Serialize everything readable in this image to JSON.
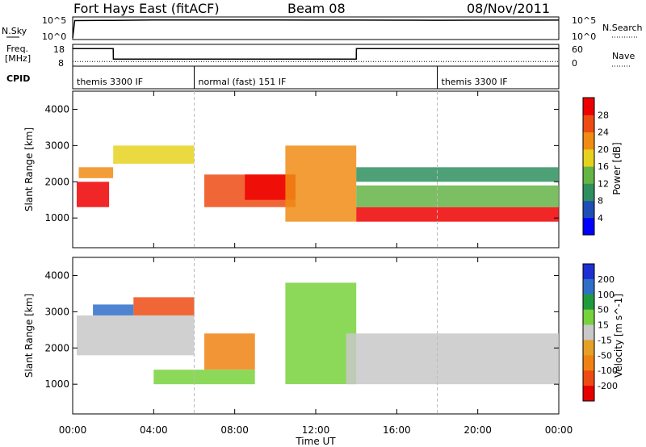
{
  "header": {
    "title": "Fort Hays East (fitACF)",
    "beam": "Beam 08",
    "date": "08/Nov/2011"
  },
  "noise_panel": {
    "left_label": "N.Sky",
    "right_label": "N.Search",
    "left_ticks": [
      "10^5",
      "10^0"
    ],
    "right_ticks": [
      "10^5",
      "10^0"
    ]
  },
  "freq_panel": {
    "left_label_1": "Freq.",
    "left_label_2": "[MHz]",
    "right_label": "Nave",
    "left_ticks": [
      "18",
      "8"
    ],
    "right_ticks": [
      "60",
      "0"
    ]
  },
  "cpid_panel": {
    "label": "CPID",
    "segments": [
      {
        "text": "themis 3300 IF",
        "start_hour": 0
      },
      {
        "text": "normal (fast) 151 IF",
        "start_hour": 6
      },
      {
        "text": "themis 3300 IF",
        "start_hour": 18
      }
    ]
  },
  "x_axis": {
    "label": "Time UT",
    "ticks": [
      "00:00",
      "04:00",
      "08:00",
      "12:00",
      "16:00",
      "20:00",
      "00:00"
    ]
  },
  "chart_data": [
    {
      "type": "line",
      "panel": "noise",
      "x": [
        0,
        0.1,
        2,
        4,
        6,
        8,
        10,
        12,
        14,
        16,
        18,
        20,
        22,
        24
      ],
      "series": [
        {
          "name": "N.Sky",
          "values": [
            1,
            30000,
            35000,
            42000,
            45000,
            44000,
            43000,
            41000,
            40000,
            38000,
            37000,
            38000,
            39000,
            40000
          ]
        }
      ]
    },
    {
      "type": "line",
      "panel": "frequency",
      "x": [
        0,
        2,
        2.01,
        14,
        14.01,
        24
      ],
      "series": [
        {
          "name": "Freq.",
          "values": [
            16.6,
            16.6,
            10.9,
            10.9,
            16.6,
            16.6
          ]
        },
        {
          "name": "Nave",
          "values": [
            10,
            10,
            10,
            10,
            10,
            10
          ]
        }
      ]
    },
    {
      "type": "heatmap",
      "panel": "power",
      "xlabel": "",
      "ylabel": "Slant Range [km]",
      "xlim": [
        0,
        24
      ],
      "ylim": [
        180,
        4500
      ],
      "yticks": [
        1000,
        2000,
        3000,
        4000
      ],
      "colorbar": {
        "label": "Power [dB]",
        "ticks": [
          "4",
          "8",
          "12",
          "16",
          "20",
          "24",
          "28"
        ],
        "colors": [
          "#0000ff",
          "#1f4fb4",
          "#2f8f5f",
          "#64b446",
          "#e6d21e",
          "#f08c14",
          "#ee4b14",
          "#ee0000"
        ]
      },
      "bands": [
        {
          "start": 0.2,
          "end": 1.8,
          "range_low": 1300,
          "range_high": 2000,
          "level": 28
        },
        {
          "start": 0.3,
          "end": 2.0,
          "range_low": 2100,
          "range_high": 2400,
          "level": 20
        },
        {
          "start": 2.0,
          "end": 6.0,
          "range_low": 2500,
          "range_high": 3000,
          "level": 18
        },
        {
          "start": 6.5,
          "end": 11.0,
          "range_low": 1300,
          "range_high": 2200,
          "level": 24
        },
        {
          "start": 8.5,
          "end": 11.0,
          "range_low": 1500,
          "range_high": 2200,
          "level": 28
        },
        {
          "start": 10.5,
          "end": 14.0,
          "range_low": 900,
          "range_high": 3000,
          "level": 20
        },
        {
          "start": 14.0,
          "end": 24.0,
          "range_low": 900,
          "range_high": 1300,
          "level": 28
        },
        {
          "start": 14.0,
          "end": 24.0,
          "range_low": 1300,
          "range_high": 1900,
          "level": 14
        },
        {
          "start": 14.0,
          "end": 24.0,
          "range_low": 2000,
          "range_high": 2400,
          "level": 10
        }
      ]
    },
    {
      "type": "heatmap",
      "panel": "velocity",
      "xlabel": "Time UT",
      "ylabel": "Slant Range [km]",
      "xlim": [
        0,
        24
      ],
      "ylim": [
        180,
        4500
      ],
      "yticks": [
        1000,
        2000,
        3000,
        4000
      ],
      "colorbar": {
        "label": "Velocity [m s^-1]",
        "ticks": [
          "200",
          "100",
          "50",
          "15",
          "-15",
          "-50",
          "-100",
          "-200"
        ],
        "colors": [
          "#1f2fd2",
          "#2f6fc8",
          "#1e9b3c",
          "#78d23c",
          "#c8c8c8",
          "#e6a028",
          "#f08214",
          "#ee4b14",
          "#e60000"
        ]
      },
      "bands": [
        {
          "start": 0.2,
          "end": 6.0,
          "range_low": 1800,
          "range_high": 2900,
          "level": 0
        },
        {
          "start": 6.5,
          "end": 9.0,
          "range_low": 1400,
          "range_high": 2400,
          "level": -60
        },
        {
          "start": 3.0,
          "end": 6.0,
          "range_low": 2900,
          "range_high": 3400,
          "level": -150
        },
        {
          "start": 1.0,
          "end": 3.0,
          "range_low": 2900,
          "range_high": 3200,
          "level": 150
        },
        {
          "start": 4.0,
          "end": 9.0,
          "range_low": 1000,
          "range_high": 1400,
          "level": 40
        },
        {
          "start": 10.5,
          "end": 14.0,
          "range_low": 1000,
          "range_high": 3800,
          "level": 30
        },
        {
          "start": 13.5,
          "end": 24.0,
          "range_low": 1000,
          "range_high": 2400,
          "level": 0
        }
      ]
    }
  ]
}
